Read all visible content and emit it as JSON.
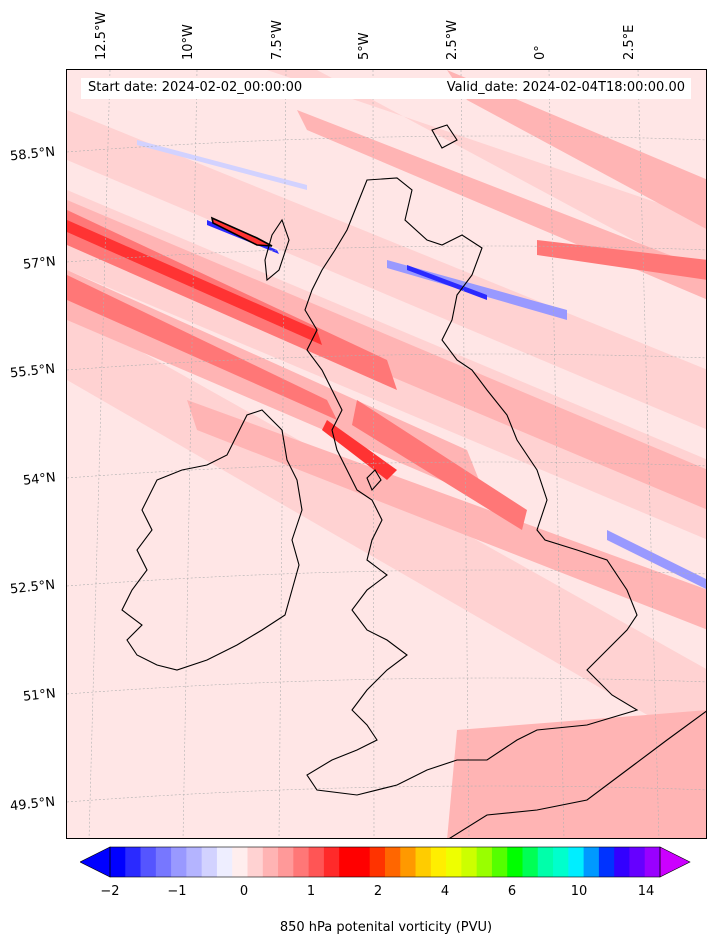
{
  "header": {
    "start_date": "Start date: 2024-02-02_00:00:00",
    "valid_date": "Valid_date: 2024-02-04T18:00:00.00"
  },
  "axes": {
    "longitude_labels": [
      "12.5°W",
      "10°W",
      "7.5°W",
      "5°W",
      "2.5°W",
      "0°",
      "2.5°E"
    ],
    "latitude_labels": [
      "58.5°N",
      "57°N",
      "55.5°N",
      "54°N",
      "52.5°N",
      "51°N",
      "49.5°N"
    ]
  },
  "colorbar": {
    "title": "850 hPa potenital vorticity (PVU)",
    "tick_labels": [
      "−2",
      "−1",
      "0",
      "1",
      "2",
      "4",
      "6",
      "10",
      "14"
    ],
    "colors": [
      "#0000ff",
      "#2a2aff",
      "#5555ff",
      "#7777ff",
      "#9999ff",
      "#b4b4ff",
      "#d2d2ff",
      "#eeeeff",
      "#ffeeee",
      "#ffd2d2",
      "#ffb4b4",
      "#ff9999",
      "#ff7777",
      "#ff5555",
      "#ff2a2a",
      "#ff0000",
      "#ff0000",
      "#ff3300",
      "#ff6600",
      "#ff9900",
      "#ffcc00",
      "#ffee00",
      "#eeff00",
      "#ccff00",
      "#99ff00",
      "#55ff00",
      "#00ff00",
      "#00ff55",
      "#00ffaa",
      "#00ffcc",
      "#00eeff",
      "#0099ff",
      "#0033ff",
      "#3300ff",
      "#6600ff",
      "#9900ff"
    ],
    "extend": "both",
    "end_colors": {
      "low": "#0000ff",
      "high": "#cc00ff"
    }
  },
  "map": {
    "background_color": "#ffe6e6",
    "coastline_color": "#000000",
    "field_colors": {
      "weak_pos": "#ffd2d2",
      "mid_pos": "#ffb4b4",
      "strong_pos": "#ff7777",
      "very_strong": "#ff3333",
      "neg": "#9999ff",
      "strong_neg": "#2a2aff"
    }
  }
}
